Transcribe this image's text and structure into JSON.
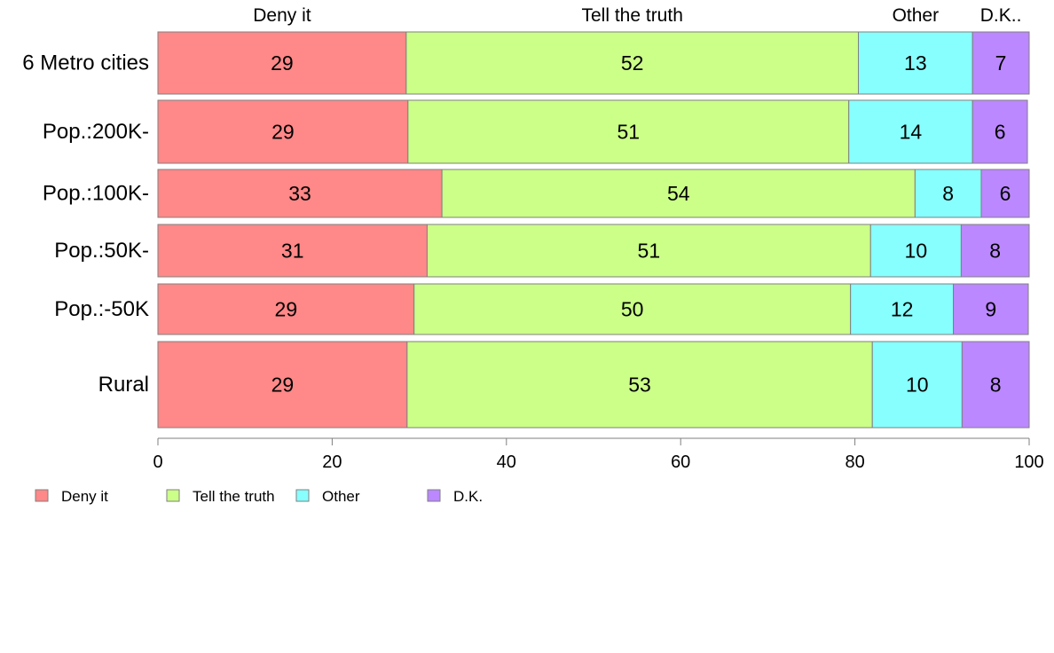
{
  "chart_data": {
    "type": "bar",
    "orientation": "horizontal",
    "stacked": true,
    "categories": [
      "6 Metro cities",
      "Pop.:200K-",
      "Pop.:100K-",
      "Pop.:50K-",
      "Pop.:-50K",
      "Rural"
    ],
    "series": [
      {
        "name": "Deny it",
        "color": "#ff8888",
        "values": [
          28.5,
          28.7,
          32.6,
          30.9,
          29.4,
          28.6
        ]
      },
      {
        "name": "Tell the truth",
        "color": "#ccff88",
        "values": [
          51.9,
          50.6,
          54.3,
          50.9,
          50.1,
          53.4
        ]
      },
      {
        "name": "Other",
        "color": "#88ffff",
        "values": [
          13.1,
          14.2,
          7.6,
          10.4,
          11.8,
          10.3
        ]
      },
      {
        "name": "D.K.",
        "color": "#bb88ff",
        "values": [
          6.5,
          6.3,
          5.5,
          7.8,
          8.6,
          7.7
        ]
      }
    ],
    "data_labels": [
      [
        "29",
        "52",
        "13",
        "7"
      ],
      [
        "29",
        "51",
        "14",
        "6"
      ],
      [
        "33",
        "54",
        "8",
        "6"
      ],
      [
        "31",
        "51",
        "10",
        "8"
      ],
      [
        "29",
        "50",
        "12",
        "9"
      ],
      [
        "29",
        "53",
        "10",
        "8"
      ]
    ],
    "top_labels": [
      "Deny it",
      "Tell the truth",
      "Other",
      "D.K.."
    ],
    "legend_labels": [
      "Deny it",
      "Tell the truth",
      "Other",
      "D.K."
    ],
    "xticks": [
      "0",
      "20",
      "40",
      "60",
      "80",
      "100"
    ],
    "xlim": [
      0,
      100
    ],
    "title": "",
    "xlabel": "",
    "ylabel": "",
    "grid": false,
    "legend_position": "bottom-left"
  }
}
